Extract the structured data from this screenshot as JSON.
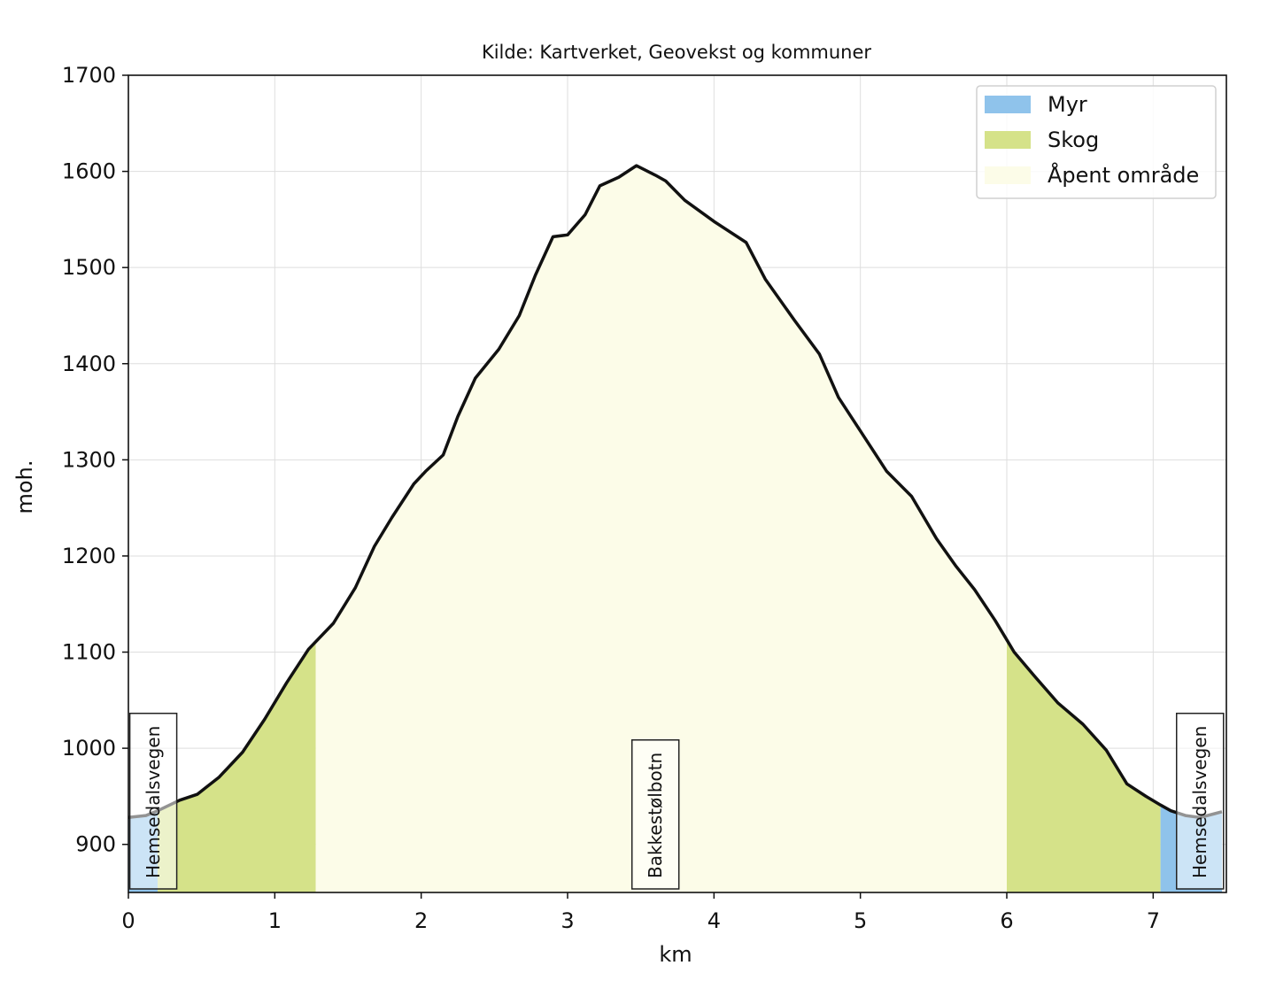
{
  "chart_data": {
    "type": "area",
    "subtitle": "Kilde: Kartverket, Geovekst og kommuner",
    "xlabel": "km",
    "ylabel": "moh.",
    "xlim": [
      0,
      7.5
    ],
    "ylim": [
      850,
      1700
    ],
    "xticks": [
      0,
      1,
      2,
      3,
      4,
      5,
      6,
      7
    ],
    "yticks": [
      900,
      1000,
      1100,
      1200,
      1300,
      1400,
      1500,
      1600,
      1700
    ],
    "grid": true,
    "legend_position": "top-right",
    "legend": [
      {
        "name": "Myr",
        "color": "#8fc3eb"
      },
      {
        "name": "Skog",
        "color": "#d5e289"
      },
      {
        "name": "Åpent område",
        "color": "#fcfce8"
      }
    ],
    "profile": {
      "x": [
        0,
        0.12,
        0.2,
        0.35,
        0.47,
        0.62,
        0.78,
        0.93,
        1.08,
        1.23,
        1.4,
        1.55,
        1.68,
        1.8,
        1.95,
        2.03,
        2.15,
        2.25,
        2.37,
        2.53,
        2.67,
        2.78,
        2.9,
        3.0,
        3.12,
        3.22,
        3.35,
        3.47,
        3.6,
        3.67,
        3.8,
        4.0,
        4.22,
        4.35,
        4.55,
        4.72,
        4.85,
        5.0,
        5.18,
        5.35,
        5.52,
        5.65,
        5.78,
        5.92,
        6.05,
        6.2,
        6.35,
        6.52,
        6.68,
        6.82,
        6.95,
        7.05,
        7.12,
        7.22,
        7.32,
        7.42,
        7.47
      ],
      "y": [
        928,
        930,
        935,
        946,
        952,
        970,
        996,
        1030,
        1068,
        1103,
        1130,
        1167,
        1210,
        1240,
        1275,
        1288,
        1305,
        1345,
        1385,
        1415,
        1450,
        1492,
        1532,
        1534,
        1555,
        1585,
        1594,
        1606,
        1596,
        1590,
        1570,
        1548,
        1526,
        1488,
        1445,
        1410,
        1365,
        1330,
        1288,
        1262,
        1218,
        1190,
        1165,
        1133,
        1100,
        1073,
        1047,
        1025,
        998,
        963,
        950,
        941,
        935,
        930,
        928,
        932,
        934
      ]
    },
    "land_cover": [
      {
        "type": "Myr",
        "from": 0,
        "to": 0.2
      },
      {
        "type": "Skog",
        "from": 0.2,
        "to": 1.28
      },
      {
        "type": "Åpent område",
        "from": 1.28,
        "to": 6.0
      },
      {
        "type": "Skog",
        "from": 6.0,
        "to": 7.05
      },
      {
        "type": "Myr",
        "from": 7.05,
        "to": 7.47
      }
    ],
    "places": [
      {
        "name": "Hemsedalsvegen",
        "x": 0.17
      },
      {
        "name": "Bakkestølbotn",
        "x": 3.6
      },
      {
        "name": "Hemsedalsvegen",
        "x": 7.32
      }
    ]
  }
}
